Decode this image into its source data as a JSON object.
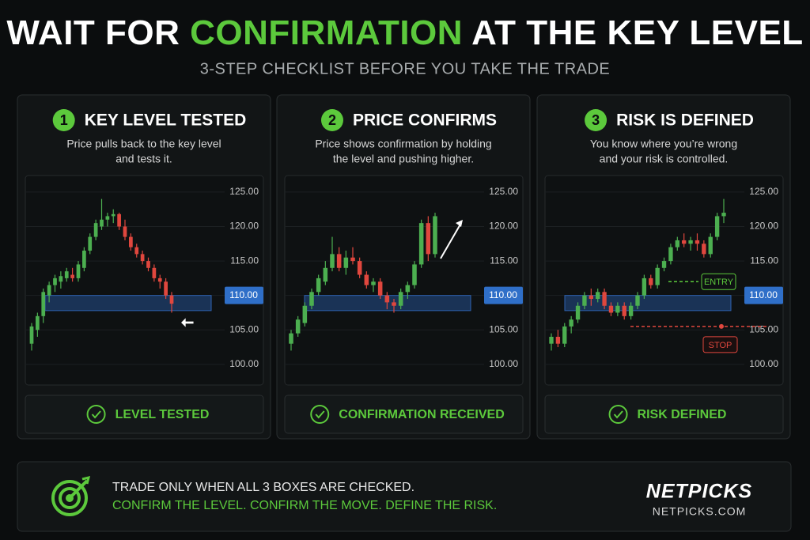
{
  "header": {
    "title_parts": [
      "WAIT FOR ",
      "CONFIRMATION",
      " AT THE KEY LEVEL"
    ],
    "subtitle": "3-STEP CHECKLIST BEFORE YOU TAKE THE TRADE"
  },
  "steps": [
    {
      "number": "1",
      "title": "KEY LEVEL TESTED",
      "description": [
        "Price pulls back to the key level",
        "and tests it."
      ],
      "check": "LEVEL TESTED",
      "chart": {
        "type": "candlestick",
        "ylim": [
          97,
          127.4
        ],
        "yticks": [
          {
            "value": 100,
            "label": "100.00"
          },
          {
            "value": 105,
            "label": "105.00"
          },
          {
            "value": 110,
            "label": "110.00"
          },
          {
            "value": 115,
            "label": "115.00"
          },
          {
            "value": 120,
            "label": "120.00"
          },
          {
            "value": 125,
            "label": "125.00"
          }
        ],
        "key_level": {
          "value": 110,
          "label": "110.00"
        },
        "candles": [
          [
            103,
            106,
            102,
            105.5
          ],
          [
            105,
            107.5,
            104,
            107
          ],
          [
            107,
            111,
            106,
            110.5
          ],
          [
            110,
            112,
            109,
            111.5
          ],
          [
            111.5,
            113,
            110.5,
            112.5
          ],
          [
            112,
            113.5,
            111,
            112.8
          ],
          [
            112.5,
            114,
            112,
            113.5
          ],
          [
            113,
            114,
            112,
            112.5
          ],
          [
            112.5,
            115,
            112,
            114.5
          ],
          [
            114,
            117,
            113.5,
            116.5
          ],
          [
            116.5,
            119,
            116,
            118.5
          ],
          [
            118.5,
            121,
            118,
            120.5
          ],
          [
            120,
            124,
            119.5,
            121
          ],
          [
            121,
            122,
            120,
            121.5
          ],
          [
            121.5,
            122.5,
            120.5,
            121.8
          ],
          [
            121.8,
            122,
            119.5,
            120
          ],
          [
            120,
            121,
            118,
            118.5
          ],
          [
            118.5,
            119,
            116.5,
            117
          ],
          [
            117,
            117.5,
            115.5,
            116
          ],
          [
            116,
            116.5,
            114.5,
            115
          ],
          [
            115,
            115.5,
            113.5,
            114
          ],
          [
            114,
            114.5,
            112,
            112.5
          ],
          [
            112.5,
            113,
            111,
            112
          ],
          [
            112,
            112.5,
            109.5,
            110
          ],
          [
            110,
            110.5,
            107.5,
            108.8
          ]
        ]
      }
    },
    {
      "number": "2",
      "title": "PRICE CONFIRMS",
      "description": [
        "Price shows confirmation by holding",
        "the level and pushing higher."
      ],
      "check": "CONFIRMATION RECEIVED",
      "chart": {
        "type": "candlestick",
        "ylim": [
          97,
          127.4
        ],
        "yticks": [
          {
            "value": 100,
            "label": "100.00"
          },
          {
            "value": 105,
            "label": "105.00"
          },
          {
            "value": 110,
            "label": "110.00"
          },
          {
            "value": 115,
            "label": "115.00"
          },
          {
            "value": 120,
            "label": "120.00"
          },
          {
            "value": 125,
            "label": "125.00"
          }
        ],
        "key_level": {
          "value": 110,
          "label": "110.00"
        },
        "candles": [
          [
            103,
            105,
            102,
            104.5
          ],
          [
            104.5,
            107,
            104,
            106.5
          ],
          [
            106,
            109,
            105.5,
            108.5
          ],
          [
            108.5,
            111,
            108,
            110.5
          ],
          [
            110.5,
            113,
            110,
            112.5
          ],
          [
            112,
            115,
            111.5,
            114
          ],
          [
            114,
            118.5,
            113.5,
            116
          ],
          [
            116,
            117,
            113.5,
            114
          ],
          [
            114,
            116.5,
            113,
            115.5
          ],
          [
            115.5,
            117,
            114.5,
            115
          ],
          [
            115,
            115.5,
            112.5,
            113
          ],
          [
            113,
            113.5,
            111,
            111.5
          ],
          [
            111.5,
            112.5,
            110.5,
            112
          ],
          [
            112,
            112.5,
            109.5,
            110
          ],
          [
            110,
            110.5,
            108,
            109
          ],
          [
            109,
            109.5,
            107.5,
            108.5
          ],
          [
            108.5,
            111,
            108,
            110.5
          ],
          [
            110.5,
            112,
            109.5,
            111.5
          ],
          [
            111.5,
            115,
            111,
            114.5
          ],
          [
            114.5,
            121,
            114,
            120.5
          ],
          [
            120.5,
            121.5,
            115,
            116
          ],
          [
            116,
            122,
            115.5,
            121.5
          ]
        ]
      }
    },
    {
      "number": "3",
      "title": "RISK IS DEFINED",
      "description": [
        "You know where you’re wrong",
        "and your risk is controlled."
      ],
      "check": "RISK DEFINED",
      "chart": {
        "type": "candlestick",
        "ylim": [
          97,
          127.4
        ],
        "yticks": [
          {
            "value": 100,
            "label": "100.00"
          },
          {
            "value": 105,
            "label": "105.00"
          },
          {
            "value": 110,
            "label": "110.00"
          },
          {
            "value": 115,
            "label": "115.00"
          },
          {
            "value": 120,
            "label": "120.00"
          },
          {
            "value": 125,
            "label": "125.00"
          }
        ],
        "key_level": {
          "value": 110,
          "label": "110.00"
        },
        "entry": {
          "value": 112,
          "label": "ENTRY"
        },
        "stop": {
          "value": 105.5,
          "label": "STOP"
        },
        "candles": [
          [
            103,
            104.5,
            102,
            104
          ],
          [
            104,
            105,
            102.5,
            103
          ],
          [
            103,
            106,
            102.5,
            105.5
          ],
          [
            105.5,
            107,
            104.5,
            106.5
          ],
          [
            106.5,
            109,
            106,
            108.5
          ],
          [
            108.5,
            110.5,
            108,
            110
          ],
          [
            110,
            111,
            108.5,
            109.5
          ],
          [
            109.5,
            111,
            109,
            110.5
          ],
          [
            110.5,
            111,
            108,
            108.5
          ],
          [
            108.5,
            109,
            107,
            107.5
          ],
          [
            107.5,
            109,
            107,
            108.5
          ],
          [
            108.5,
            109,
            106.5,
            107
          ],
          [
            107,
            109,
            106.5,
            108.5
          ],
          [
            108.5,
            110.5,
            108,
            110
          ],
          [
            110,
            113,
            109.5,
            112.5
          ],
          [
            112.5,
            113,
            111,
            111.5
          ],
          [
            111.5,
            114.5,
            111,
            114
          ],
          [
            114,
            115.5,
            113.5,
            115
          ],
          [
            115,
            117.5,
            114.5,
            117
          ],
          [
            117,
            118.5,
            116.5,
            118
          ],
          [
            118,
            119,
            117,
            117.5
          ],
          [
            117.5,
            118.5,
            116.5,
            118
          ],
          [
            118,
            119,
            116.5,
            117.5
          ],
          [
            117.5,
            118,
            115.5,
            116
          ],
          [
            116,
            119,
            115.5,
            118.5
          ],
          [
            118.5,
            122,
            118,
            121.5
          ],
          [
            121.5,
            124,
            120.5,
            122
          ]
        ]
      }
    }
  ],
  "footer": {
    "line1": "TRADE ONLY WHEN ALL 3 BOXES ARE CHECKED.",
    "line2": "CONFIRM THE LEVEL. CONFIRM THE MOVE. DEFINE THE RISK.",
    "brand": "NETPICKS",
    "url": "NETPICKS.COM"
  }
}
